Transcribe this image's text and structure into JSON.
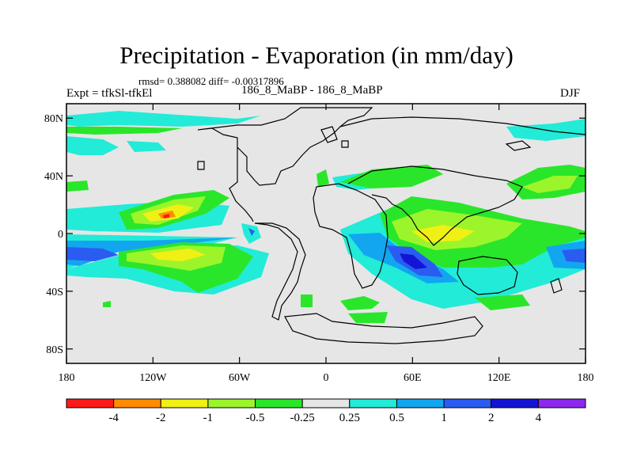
{
  "chart_data": {
    "type": "heatmap",
    "title": "Precipitation - Evaporation (in mm/day)",
    "stats_line": "rmsd= 0.388082 diff= -0.00317896",
    "left_label": "Expt = tfkSl-tfkEl",
    "center_label": "186_8_MaBP - 186_8_MaBP",
    "right_label": "DJF",
    "x_axis": {
      "range": [
        -180,
        180
      ],
      "ticks": [
        {
          "value": -180,
          "label": "180"
        },
        {
          "value": -120,
          "label": "120W"
        },
        {
          "value": -60,
          "label": "60W"
        },
        {
          "value": 0,
          "label": "0"
        },
        {
          "value": 60,
          "label": "60E"
        },
        {
          "value": 120,
          "label": "120E"
        },
        {
          "value": 180,
          "label": "180"
        }
      ]
    },
    "y_axis": {
      "range": [
        -90,
        90
      ],
      "ticks": [
        {
          "value": 80,
          "label": "80N"
        },
        {
          "value": 40,
          "label": "40N"
        },
        {
          "value": 0,
          "label": "0"
        },
        {
          "value": -40,
          "label": "40S"
        },
        {
          "value": -80,
          "label": "80S"
        }
      ]
    },
    "colorbar": {
      "colors": [
        "#ff1a1a",
        "#ff8c00",
        "#f0f014",
        "#9cf52a",
        "#2ae62a",
        "#e6e6e6",
        "#22ebd8",
        "#12a6f0",
        "#2a5cf2",
        "#1414d4",
        "#8c28ee"
      ],
      "labels": [
        "-4",
        "-2",
        "-1",
        "-0.5",
        "-0.25",
        "0.25",
        "0.5",
        "1",
        "2",
        "4"
      ]
    },
    "background_color": "#e6e6e6"
  }
}
